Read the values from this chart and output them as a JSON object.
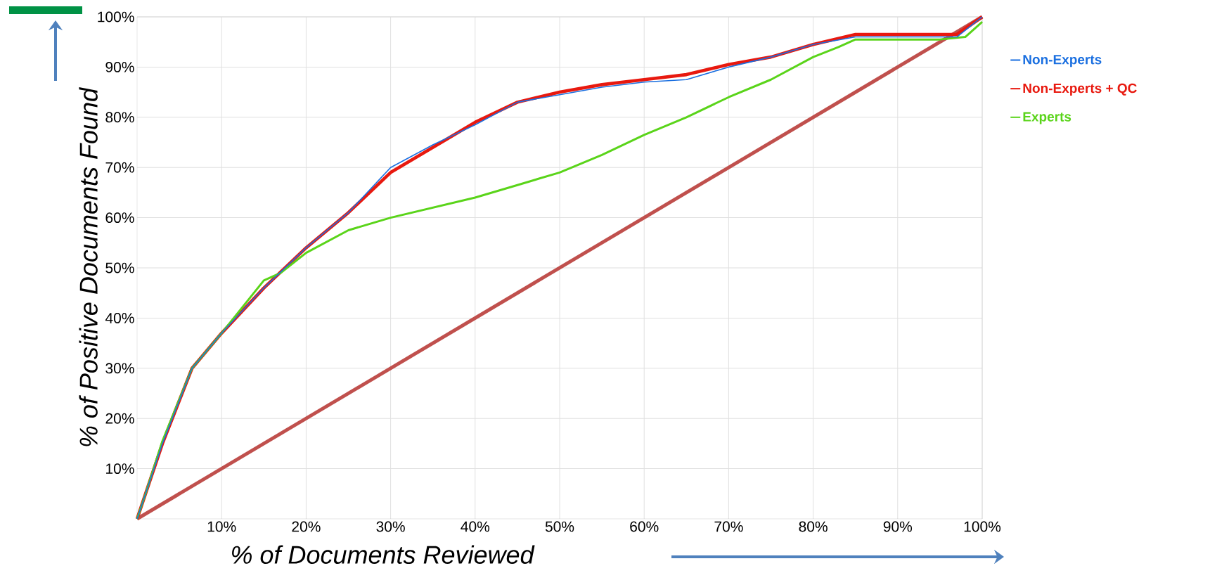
{
  "chart_data": {
    "type": "line",
    "xlabel": "% of Documents Reviewed",
    "ylabel": "% of Positive Documents Found",
    "xlim": [
      0,
      100
    ],
    "ylim": [
      0,
      100
    ],
    "xticks": [
      {
        "value": 10,
        "label": "10%"
      },
      {
        "value": 20,
        "label": "20%"
      },
      {
        "value": 30,
        "label": "30%"
      },
      {
        "value": 40,
        "label": "40%"
      },
      {
        "value": 50,
        "label": "50%"
      },
      {
        "value": 60,
        "label": "60%"
      },
      {
        "value": 70,
        "label": "70%"
      },
      {
        "value": 80,
        "label": "80%"
      },
      {
        "value": 90,
        "label": "90%"
      },
      {
        "value": 100,
        "label": "100%"
      }
    ],
    "yticks": [
      {
        "value": 10,
        "label": "10%"
      },
      {
        "value": 20,
        "label": "20%"
      },
      {
        "value": 30,
        "label": "30%"
      },
      {
        "value": 40,
        "label": "40%"
      },
      {
        "value": 50,
        "label": "50%"
      },
      {
        "value": 60,
        "label": "60%"
      },
      {
        "value": 70,
        "label": "70%"
      },
      {
        "value": 80,
        "label": "80%"
      },
      {
        "value": 90,
        "label": "90%"
      },
      {
        "value": 100,
        "label": "100%"
      }
    ],
    "grid": true,
    "legend": "right",
    "marker": "none",
    "line_style": "solid",
    "series": [
      {
        "name": "Non-Experts",
        "color": "#1a6fe0",
        "x": [
          0,
          1,
          3,
          6.5,
          10,
          15,
          20,
          25,
          30,
          35,
          40,
          45,
          50,
          55,
          60,
          65,
          70,
          75,
          80,
          85,
          90,
          97,
          100
        ],
        "values": [
          0,
          5,
          15,
          30,
          37,
          46,
          54,
          61,
          70,
          74.5,
          78.5,
          83,
          84.5,
          86,
          87,
          87.5,
          90,
          92,
          94.5,
          96,
          96,
          96,
          100
        ]
      },
      {
        "name": "Non-Experts + QC",
        "color": "#e8190f",
        "x": [
          0,
          1,
          3,
          6.5,
          10,
          15,
          20,
          25,
          30,
          35,
          40,
          45,
          50,
          55,
          60,
          65,
          70,
          75,
          80,
          85,
          90,
          97,
          100
        ],
        "values": [
          0,
          5,
          15,
          30,
          37,
          46,
          54,
          61,
          69,
          74,
          79,
          83,
          85,
          86.5,
          87.5,
          88.5,
          90.5,
          92,
          94.5,
          96.5,
          96.5,
          96.5,
          100
        ]
      },
      {
        "name": "Experts",
        "color": "#5ad41a",
        "x": [
          0,
          1,
          3,
          6.5,
          10,
          15,
          17,
          20,
          25,
          30,
          35,
          40,
          45,
          50,
          55,
          60,
          65,
          70,
          75,
          80,
          83,
          85,
          90,
          95,
          98,
          100
        ],
        "values": [
          0,
          5,
          15.5,
          30,
          37,
          47.5,
          49,
          53,
          57.5,
          60,
          62,
          64,
          66.5,
          69,
          72.5,
          76.5,
          80,
          84,
          87.5,
          92,
          94,
          95.5,
          95.5,
          95.5,
          96,
          99
        ]
      },
      {
        "color": "#c0504d",
        "x": [
          0,
          100
        ],
        "values": [
          0,
          100
        ]
      }
    ]
  }
}
